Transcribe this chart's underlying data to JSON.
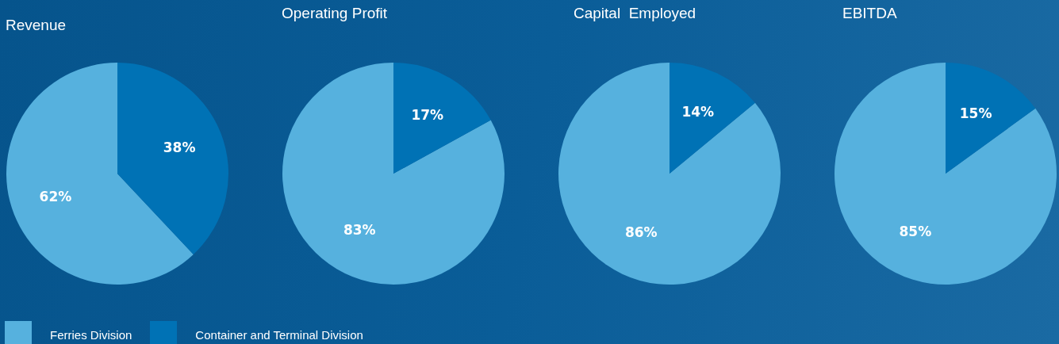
{
  "chart_data": [
    {
      "type": "pie",
      "title": "Revenue",
      "categories": [
        "Ferries Division",
        "Container and Terminal Division"
      ],
      "values": [
        62,
        38
      ],
      "colors": [
        "#56b1de",
        "#0072b5"
      ],
      "value_labels": [
        "62%",
        "38%"
      ],
      "legend": "bottom"
    },
    {
      "type": "pie",
      "title": "Operating Profit",
      "categories": [
        null,
        null
      ],
      "values": [
        83,
        17
      ],
      "colors": [
        "#56b1de",
        "#0072b5"
      ],
      "value_labels": [
        "83%",
        "17%"
      ]
    },
    {
      "type": "pie",
      "title": "Capital  Employed",
      "categories": [
        null,
        null
      ],
      "values": [
        86,
        14
      ],
      "colors": [
        "#56b1de",
        "#0072b5"
      ],
      "value_labels": [
        "86%",
        "14%"
      ]
    },
    {
      "type": "pie",
      "title": "EBITDA",
      "categories": [
        null,
        null
      ],
      "values": [
        85,
        15
      ],
      "colors": [
        "#56b1de",
        "#0072b5"
      ],
      "value_labels": [
        "85%",
        "15%"
      ]
    }
  ]
}
